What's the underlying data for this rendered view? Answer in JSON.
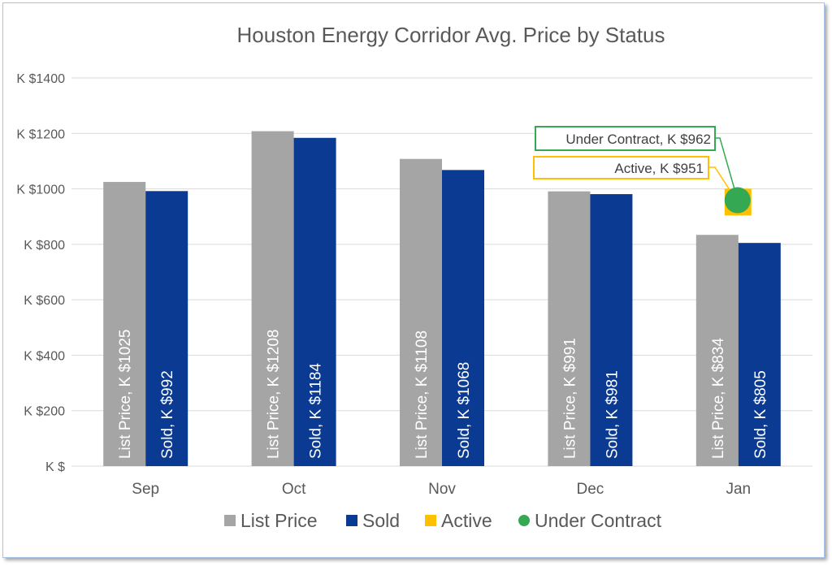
{
  "chart_data": {
    "type": "bar",
    "title": "Houston Energy Corridor Avg. Price by Status",
    "categories": [
      "Sep",
      "Oct",
      "Nov",
      "Dec",
      "Jan"
    ],
    "ylim": [
      0,
      1400
    ],
    "yticks": [
      0,
      200,
      400,
      600,
      800,
      1000,
      1200,
      1400
    ],
    "ytick_labels": [
      "K $",
      "K $200",
      "K $400",
      "K $600",
      "K $800",
      "K $1000",
      "K $1200",
      "K $1400"
    ],
    "grid": true,
    "legend_position": "bottom",
    "series": [
      {
        "name": "List Price",
        "color": "#a5a5a5",
        "values": [
          1025,
          1208,
          1108,
          991,
          834
        ],
        "labels": [
          "List Price, K $1025",
          "List Price, K $1208",
          "List Price, K $1108",
          "List Price, K $991",
          "List Price, K $834"
        ]
      },
      {
        "name": "Sold",
        "color": "#0b3a92",
        "values": [
          992,
          1184,
          1068,
          981,
          805
        ],
        "labels": [
          "Sold, K $992",
          "Sold, K $1184",
          "Sold, K $1068",
          "Sold, K $981",
          "Sold, K $805"
        ]
      },
      {
        "name": "Active",
        "color": "#ffc000",
        "values": [
          null,
          null,
          null,
          null,
          951
        ],
        "labels": [
          "",
          "",
          "",
          "",
          "Active, K $951"
        ]
      },
      {
        "name": "Under Contract",
        "color": "#34a853",
        "values": [
          null,
          null,
          null,
          null,
          962
        ],
        "labels": [
          "",
          "",
          "",
          "",
          "Under Contract, K $962"
        ]
      }
    ]
  }
}
